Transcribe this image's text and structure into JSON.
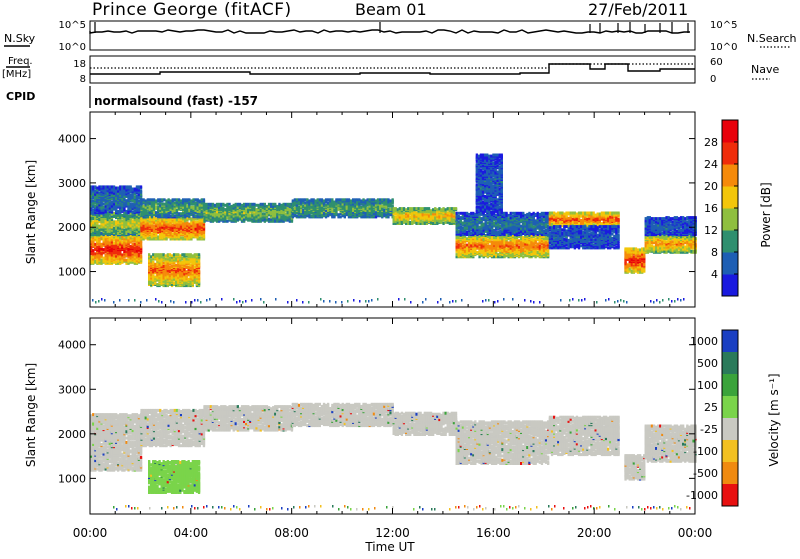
{
  "header": {
    "station": "Prince George (fitACF)",
    "beam": "Beam 01",
    "date": "27/Feb/2011"
  },
  "top_panels": {
    "nsky_label": "N.Sky",
    "nsky_ticks": [
      "10^5",
      "10^0"
    ],
    "nsearch_label": "N.Search",
    "nsearch_ticks": [
      "10^5",
      "10^0"
    ],
    "freq_label": "Freq.",
    "freq_unit": "[MHz]",
    "freq_ticks": [
      "18",
      "8"
    ],
    "nave_label": "Nave",
    "nave_ticks": [
      "60",
      "0"
    ],
    "cpid_label": "CPID",
    "cpid_text": "normalsound (fast) -157"
  },
  "chart_data": [
    {
      "type": "heatmap",
      "name": "power",
      "ylabel": "Slant Range [km]",
      "xlabel": "Time UT",
      "xticks": [
        "00:00",
        "04:00",
        "08:00",
        "12:00",
        "16:00",
        "20:00",
        "00:00"
      ],
      "xlim_hours": [
        0,
        24
      ],
      "ylim_km": [
        200,
        4600
      ],
      "yticks": [
        "1000",
        "2000",
        "3000",
        "4000"
      ],
      "colorbar_label": "Power [dB]",
      "colorbar_ticks": [
        "4",
        "8",
        "12",
        "16",
        "20",
        "24",
        "28"
      ],
      "colorbar_range": [
        0,
        32
      ],
      "colors": [
        "#1a1adf",
        "#1e5fb4",
        "#2f8f6f",
        "#8fbf3f",
        "#f3c60a",
        "#f58a0a",
        "#ef2c0a",
        "#e8000b"
      ],
      "bands": [
        {
          "t0": 0.0,
          "t1": 2.0,
          "r0": 1150,
          "r1": 1800,
          "level": 28
        },
        {
          "t0": 0.0,
          "t1": 2.0,
          "r0": 1800,
          "r1": 2300,
          "level": 16
        },
        {
          "t0": 0.0,
          "t1": 2.0,
          "r0": 2300,
          "r1": 2900,
          "level": 8
        },
        {
          "t0": 2.0,
          "t1": 4.5,
          "r0": 1700,
          "r1": 2200,
          "level": 26
        },
        {
          "t0": 2.0,
          "t1": 4.5,
          "r0": 2200,
          "r1": 2600,
          "level": 12
        },
        {
          "t0": 2.3,
          "t1": 4.3,
          "r0": 650,
          "r1": 1350,
          "level": 24
        },
        {
          "t0": 4.5,
          "t1": 8.0,
          "r0": 2100,
          "r1": 2500,
          "level": 14
        },
        {
          "t0": 8.0,
          "t1": 12.0,
          "r0": 2200,
          "r1": 2600,
          "level": 12
        },
        {
          "t0": 12.0,
          "t1": 14.5,
          "r0": 2050,
          "r1": 2400,
          "level": 20
        },
        {
          "t0": 14.5,
          "t1": 18.2,
          "r0": 1300,
          "r1": 1800,
          "level": 24
        },
        {
          "t0": 14.5,
          "t1": 18.2,
          "r0": 1800,
          "r1": 2300,
          "level": 8
        },
        {
          "t0": 15.3,
          "t1": 16.3,
          "r0": 2300,
          "r1": 3600,
          "level": 6
        },
        {
          "t0": 18.2,
          "t1": 21.0,
          "r0": 2000,
          "r1": 2300,
          "level": 26
        },
        {
          "t0": 18.2,
          "t1": 21.0,
          "r0": 1500,
          "r1": 2000,
          "level": 6
        },
        {
          "t0": 21.2,
          "t1": 22.0,
          "r0": 950,
          "r1": 1500,
          "level": 28
        },
        {
          "t0": 22.0,
          "t1": 24.0,
          "r0": 1400,
          "r1": 1800,
          "level": 22
        },
        {
          "t0": 22.0,
          "t1": 24.0,
          "r0": 1800,
          "r1": 2200,
          "level": 6
        }
      ]
    },
    {
      "type": "heatmap",
      "name": "velocity",
      "ylabel": "Slant Range [km]",
      "xlabel": "Time UT",
      "xticks": [
        "00:00",
        "04:00",
        "08:00",
        "12:00",
        "16:00",
        "20:00",
        "00:00"
      ],
      "xlim_hours": [
        0,
        24
      ],
      "ylim_km": [
        200,
        4600
      ],
      "yticks": [
        "1000",
        "2000",
        "3000",
        "4000"
      ],
      "colorbar_label": "Velocity [m s⁻¹]",
      "colorbar_ticks": [
        "1000",
        "500",
        "100",
        "25",
        "-25",
        "-100",
        "-500",
        "-1000"
      ],
      "colors": [
        "#1a3fc2",
        "#2a7a5a",
        "#3aa33a",
        "#7ad44a",
        "#c9c9c2",
        "#f3c020",
        "#f08a10",
        "#e81010"
      ],
      "bands": [
        {
          "t0": 0.0,
          "t1": 2.0,
          "r0": 1150,
          "r1": 2400,
          "level": 4
        },
        {
          "t0": 2.0,
          "t1": 4.5,
          "r0": 1700,
          "r1": 2500,
          "level": 4
        },
        {
          "t0": 2.3,
          "t1": 4.3,
          "r0": 650,
          "r1": 1350,
          "level": 3
        },
        {
          "t0": 4.5,
          "t1": 8.0,
          "r0": 2050,
          "r1": 2600,
          "level": 4
        },
        {
          "t0": 8.0,
          "t1": 12.0,
          "r0": 2150,
          "r1": 2650,
          "level": 4
        },
        {
          "t0": 12.0,
          "t1": 14.5,
          "r0": 1950,
          "r1": 2450,
          "level": 4
        },
        {
          "t0": 14.5,
          "t1": 18.2,
          "r0": 1300,
          "r1": 2250,
          "level": 4
        },
        {
          "t0": 18.2,
          "t1": 21.0,
          "r0": 1500,
          "r1": 2350,
          "level": 4
        },
        {
          "t0": 21.2,
          "t1": 22.0,
          "r0": 950,
          "r1": 1500,
          "level": 4
        },
        {
          "t0": 22.0,
          "t1": 24.0,
          "r0": 1350,
          "r1": 2150,
          "level": 4
        }
      ]
    }
  ]
}
